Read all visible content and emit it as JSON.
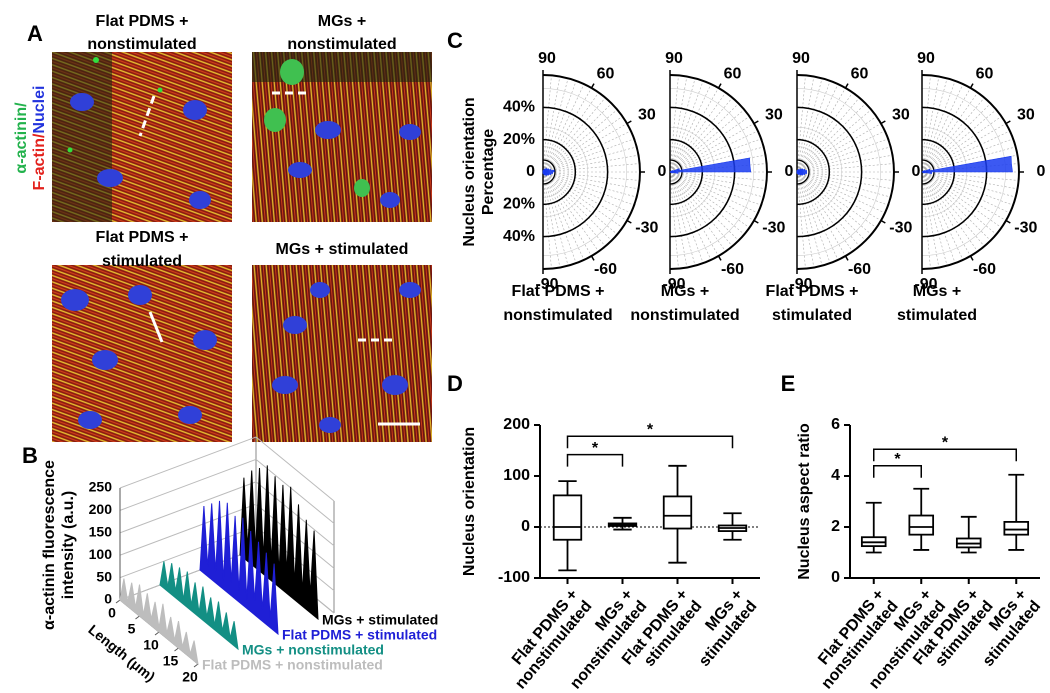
{
  "panel_labels": [
    "A",
    "B",
    "C",
    "D",
    "E"
  ],
  "panel_a": {
    "channel_label": [
      {
        "text": "α-actinin/",
        "color": "#22b24c"
      },
      {
        "text": "F-actin/",
        "color": "#e3211c"
      },
      {
        "text": "Nuclei",
        "color": "#2233dd"
      }
    ],
    "images": [
      {
        "title": [
          "Flat PDMS +",
          "nonstimulated"
        ]
      },
      {
        "title": [
          "MGs +",
          "nonstimulated"
        ]
      },
      {
        "title": [
          "Flat PDMS +",
          "stimulated"
        ]
      },
      {
        "title": [
          "MGs + stimulated"
        ]
      }
    ]
  },
  "chart_data": [
    {
      "type": "ridge3d",
      "ylabel": [
        "α-actinin fluorescence",
        "intensity (a.u.)"
      ],
      "xlabel": "Length (μm)",
      "x": [
        0,
        1,
        2,
        3,
        4,
        5,
        6,
        7,
        8,
        9,
        10,
        11,
        12,
        13,
        14,
        15,
        16,
        17,
        18,
        19,
        20
      ],
      "xlim": [
        0,
        20
      ],
      "xticks": [
        0,
        5,
        10,
        15,
        20
      ],
      "ylim": [
        0,
        250
      ],
      "yticks": [
        0,
        50,
        100,
        150,
        200,
        250
      ],
      "grid": true,
      "series": [
        {
          "name": "MGs + stimulated",
          "color": "#000000",
          "values": [
            0,
            180,
            30,
            210,
            40,
            230,
            35,
            250,
            40,
            240,
            30,
            235,
            45,
            245,
            35,
            220,
            30,
            200,
            40,
            190,
            0
          ]
        },
        {
          "name": "Flat PDMS + stimulated",
          "color": "#1f1fd6",
          "values": [
            0,
            150,
            20,
            170,
            25,
            190,
            20,
            200,
            30,
            185,
            25,
            195,
            20,
            180,
            30,
            170,
            25,
            160,
            20,
            150,
            0
          ]
        },
        {
          "name": "MGs + nonstimulated",
          "color": "#138f84",
          "values": [
            0,
            60,
            10,
            70,
            15,
            75,
            10,
            80,
            12,
            70,
            10,
            75,
            15,
            65,
            10,
            70,
            12,
            60,
            10,
            55,
            0
          ]
        },
        {
          "name": "Flat PDMS + nonstimulated",
          "color": "#bdbdbd",
          "values": [
            0,
            55,
            10,
            60,
            12,
            70,
            10,
            65,
            15,
            60,
            10,
            70,
            12,
            55,
            10,
            60,
            10,
            50,
            8,
            45,
            0
          ]
        }
      ]
    },
    {
      "type": "polar",
      "ylabel": [
        "Nucleus orientation",
        "Percentage"
      ],
      "title": [
        "Flat PDMS +",
        "nonstimulated"
      ],
      "color": "#1a3cf0",
      "angle_bins": [
        -90,
        -80,
        -70,
        -60,
        -50,
        -40,
        -30,
        -20,
        -10,
        0,
        10,
        20,
        30,
        40,
        50,
        60,
        70,
        80,
        90
      ],
      "values": [
        1,
        1,
        2,
        2,
        3,
        3,
        4,
        5,
        6,
        7,
        5,
        4,
        3,
        3,
        2,
        2,
        1,
        1
      ],
      "rlim": [
        0,
        60
      ],
      "rticks": [
        {
          "value": 40,
          "label": "40%"
        },
        {
          "value": 20,
          "label": "20%"
        },
        0
      ],
      "thetaticks": [
        90,
        60,
        30,
        0,
        -30,
        -60,
        -90
      ]
    },
    {
      "type": "polar",
      "title": [
        "MGs +",
        "nonstimulated"
      ],
      "color": "#1a3cf0",
      "angle_bins": [
        -90,
        -80,
        -70,
        -60,
        -50,
        -40,
        -30,
        -20,
        -10,
        0,
        10,
        20,
        30,
        40,
        50,
        60,
        70,
        80,
        90
      ],
      "values": [
        0,
        0,
        0,
        0,
        0,
        0,
        1,
        2,
        5,
        50,
        6,
        2,
        1,
        0,
        0,
        0,
        0,
        0
      ],
      "rlim": [
        0,
        60
      ],
      "rticks": [
        20,
        40
      ],
      "thetaticks": [
        90,
        60,
        30,
        0,
        -30,
        -60,
        -90
      ]
    },
    {
      "type": "polar",
      "title": [
        "Flat PDMS +",
        "stimulated"
      ],
      "color": "#1a3cf0",
      "angle_bins": [
        -90,
        -80,
        -70,
        -60,
        -50,
        -40,
        -30,
        -20,
        -10,
        0,
        10,
        20,
        30,
        40,
        50,
        60,
        70,
        80,
        90
      ],
      "values": [
        1,
        1,
        1,
        2,
        2,
        3,
        4,
        5,
        6,
        6,
        5,
        4,
        3,
        2,
        2,
        1,
        1,
        1
      ],
      "rlim": [
        0,
        60
      ],
      "rticks": [
        20,
        40
      ],
      "thetaticks": [
        90,
        60,
        30,
        0,
        -30,
        -60,
        -90
      ]
    },
    {
      "type": "polar",
      "title": [
        "MGs +",
        "stimulated"
      ],
      "color": "#1a3cf0",
      "angle_bins": [
        -90,
        -80,
        -70,
        -60,
        -50,
        -40,
        -30,
        -20,
        -10,
        0,
        10,
        20,
        30,
        40,
        50,
        60,
        70,
        80,
        90
      ],
      "values": [
        0,
        0,
        0,
        0,
        0,
        0,
        1,
        2,
        6,
        56,
        5,
        2,
        1,
        0,
        0,
        0,
        0,
        0
      ],
      "rlim": [
        0,
        60
      ],
      "rticks": [
        20,
        40
      ],
      "thetaticks": [
        90,
        60,
        30,
        0,
        -30,
        -60,
        -90
      ]
    },
    {
      "type": "box",
      "ylabel": "Nucleus orientation",
      "categories": [
        [
          "Flat PDMS +",
          "nonstimulated"
        ],
        [
          "MGs +",
          "nonstimulated"
        ],
        [
          "Flat PDMS +",
          "stimulated"
        ],
        [
          "MGs +",
          "stimulated"
        ]
      ],
      "min": [
        -85,
        -5,
        -70,
        -25
      ],
      "q1": [
        -25,
        2,
        -3,
        -8
      ],
      "median": [
        0,
        4,
        22,
        -2
      ],
      "q3": [
        62,
        7,
        60,
        3
      ],
      "max": [
        90,
        18,
        120,
        27
      ],
      "ylim": [
        -100,
        200
      ],
      "yticks": [
        200,
        100,
        0,
        -100
      ],
      "reference_line": 0,
      "annotations": [
        {
          "text": "*",
          "from": 0,
          "to": 1,
          "y": 142
        },
        {
          "text": "*",
          "from": 0,
          "to": 3,
          "y": 178
        }
      ]
    },
    {
      "type": "box",
      "ylabel": "Nucleus aspect ratio",
      "categories": [
        [
          "Flat PDMS +",
          "nonstimulated"
        ],
        [
          "MGs +",
          "nonstimulated"
        ],
        [
          "Flat PDMS +",
          "stimulated"
        ],
        [
          "MGs +",
          "stimulated"
        ]
      ],
      "min": [
        1.0,
        1.1,
        1.0,
        1.1
      ],
      "q1": [
        1.25,
        1.7,
        1.2,
        1.7
      ],
      "median": [
        1.4,
        2.0,
        1.35,
        1.9
      ],
      "q3": [
        1.6,
        2.45,
        1.55,
        2.2
      ],
      "max": [
        2.95,
        3.5,
        2.4,
        4.05
      ],
      "ylim": [
        0,
        6
      ],
      "yticks": [
        0,
        2,
        4,
        6
      ],
      "annotations": [
        {
          "text": "*",
          "from": 0,
          "to": 1,
          "y": 4.4
        },
        {
          "text": "*",
          "from": 0,
          "to": 3,
          "y": 5.05
        }
      ]
    }
  ]
}
